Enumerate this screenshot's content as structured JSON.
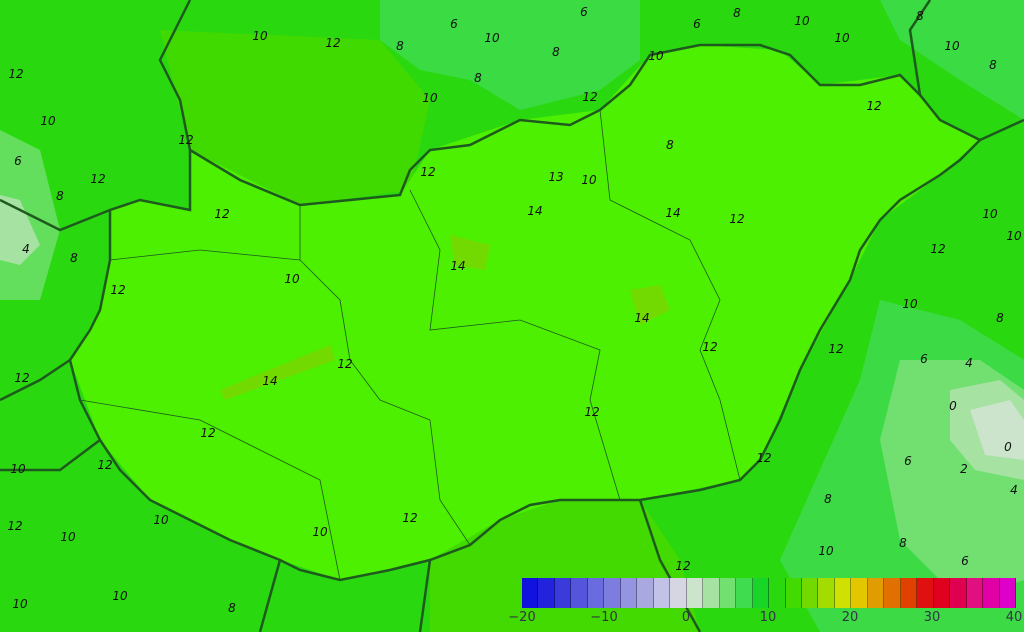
{
  "map": {
    "contour_labels": [
      "12",
      "10",
      "12",
      "8",
      "6",
      "10",
      "8",
      "8",
      "6",
      "10",
      "8",
      "10",
      "6",
      "8",
      "10",
      "12",
      "10",
      "12",
      "12",
      "10",
      "12",
      "12",
      "6",
      "12",
      "10",
      "4",
      "8",
      "12",
      "12",
      "13",
      "10",
      "8",
      "14",
      "14",
      "12",
      "14",
      "12",
      "10",
      "12",
      "10",
      "8",
      "10",
      "14",
      "10",
      "12",
      "14",
      "12",
      "12",
      "12",
      "12",
      "12",
      "10",
      "8",
      "6",
      "4",
      "0",
      "0",
      "2",
      "6",
      "4",
      "8",
      "12",
      "10",
      "12",
      "10",
      "10",
      "12",
      "10",
      "10",
      "8",
      "8",
      "6",
      "10",
      "8"
    ]
  },
  "colorbar": {
    "ticks": [
      "−20",
      "−10",
      "0",
      "10",
      "20",
      "30",
      "40"
    ],
    "colors": [
      "#1212de",
      "#2323de",
      "#3b3bdc",
      "#5555dc",
      "#6b6be0",
      "#7d7de0",
      "#9494e0",
      "#a9a9e0",
      "#c2c2e6",
      "#d6d6e2",
      "#cce4cc",
      "#a6e2a2",
      "#72e070",
      "#40dc50",
      "#18d628",
      "#2ad810",
      "#42da00",
      "#72da00",
      "#a2dc00",
      "#d0e000",
      "#e2c600",
      "#e09c00",
      "#e07000",
      "#e04000",
      "#e01010",
      "#e00020",
      "#e00050",
      "#e01080",
      "#e000a4",
      "#de00c8"
    ]
  }
}
